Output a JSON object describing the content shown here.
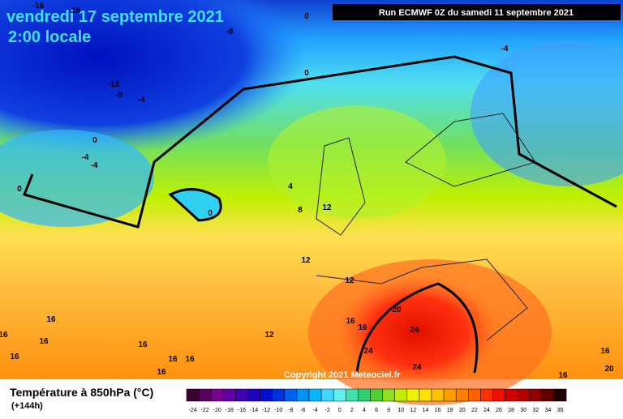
{
  "header": {
    "date": "vendredi 17 septembre 2021",
    "time": "2:00 locale",
    "run": "Run ECMWF 0Z du samedi 11 septembre 2021"
  },
  "map": {
    "copyright": "Copyright 2021 Meteociel.fr",
    "contour_labels": [
      "-16",
      "-16",
      "-8",
      "0",
      "-4",
      "0",
      "-12",
      "-8",
      "-4",
      "0",
      "-4",
      "-4",
      "0",
      "0",
      "4",
      "8",
      "12",
      "12",
      "12",
      "16",
      "16",
      "16",
      "16",
      "12",
      "16",
      "16",
      "20",
      "24",
      "24",
      "24",
      "16",
      "16",
      "16",
      "16",
      "16",
      "20",
      "16"
    ]
  },
  "legend": {
    "title": "Température à 850hPa (°C)",
    "subtitle": "(+144h)",
    "labels": [
      -24,
      -22,
      -20,
      -18,
      -16,
      -14,
      -12,
      -10,
      -8,
      -6,
      -4,
      -2,
      0,
      2,
      4,
      6,
      8,
      10,
      12,
      14,
      16,
      18,
      20,
      22,
      24,
      26,
      28,
      30,
      32,
      34,
      36
    ],
    "colors": [
      "#3a0030",
      "#5a0060",
      "#7a0090",
      "#6000a0",
      "#4000b0",
      "#2000c0",
      "#0010d0",
      "#0030e0",
      "#0060f0",
      "#0090f8",
      "#00b8ff",
      "#40d8ff",
      "#60f0f0",
      "#40e0b0",
      "#30d070",
      "#50d030",
      "#90e020",
      "#c0f000",
      "#f0f000",
      "#ffe000",
      "#ffc000",
      "#ffa000",
      "#ff8000",
      "#ff6000",
      "#ff3000",
      "#f01000",
      "#d00000",
      "#b00000",
      "#900000",
      "#600000",
      "#200000"
    ]
  }
}
